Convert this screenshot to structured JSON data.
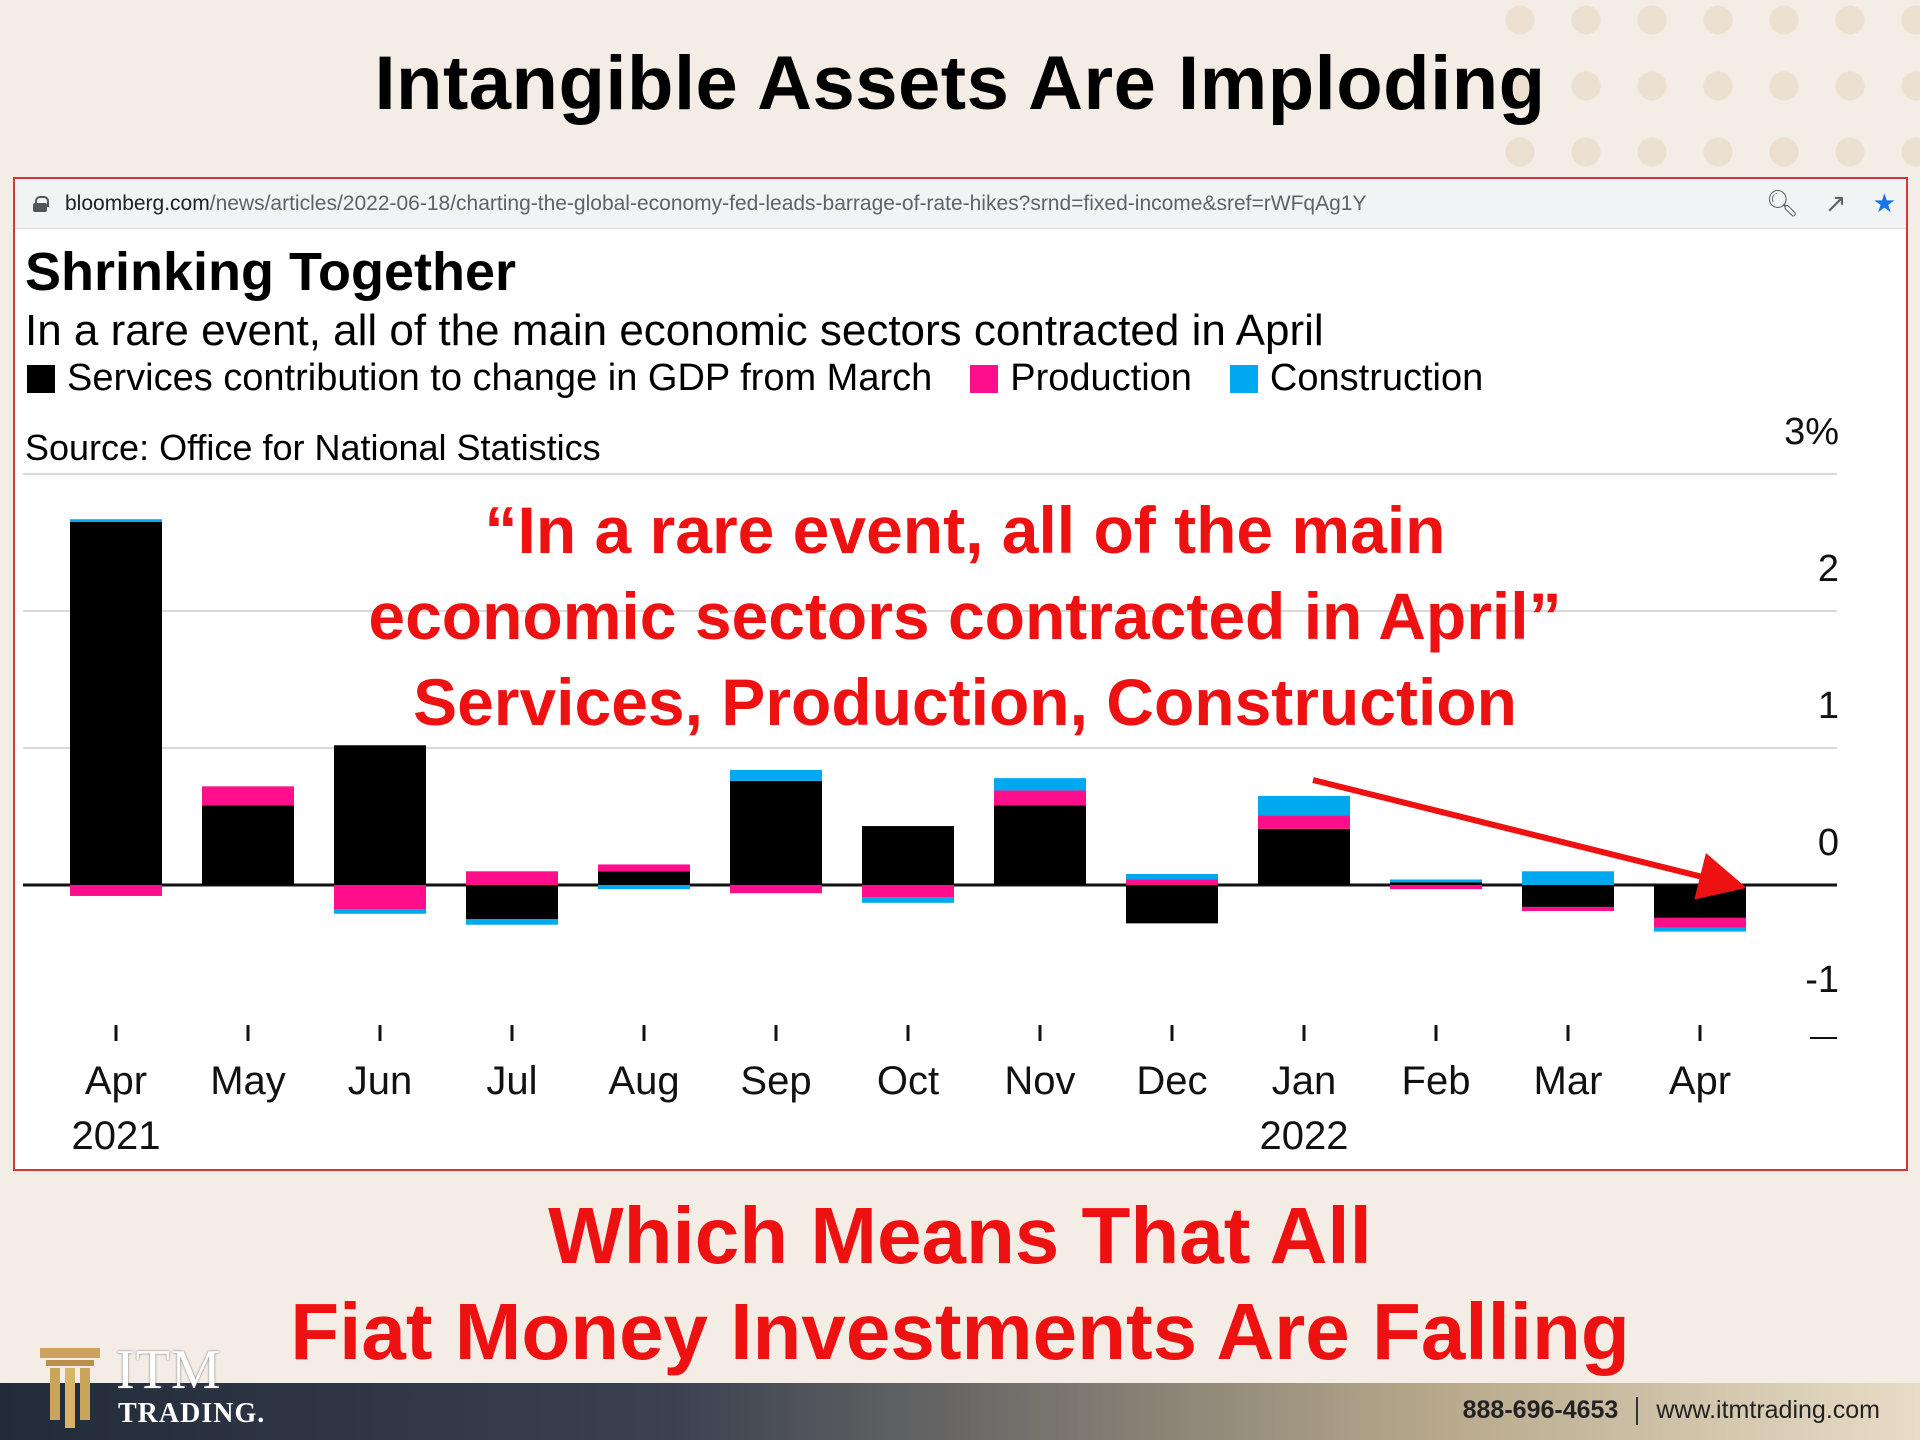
{
  "slide": {
    "title": "Intangible Assets Are Imploding",
    "bottom_line1": "Which Means That All",
    "bottom_line2": "Fiat Money Investments Are Falling",
    "annotation_line1": "“In a rare event, all of the main",
    "annotation_line2": "economic sectors contracted in April”",
    "annotation_line3": "Services, Production, Construction"
  },
  "browser": {
    "url_domain": "bloomberg.com",
    "url_path": "/news/articles/2022-06-18/charting-the-global-economy-fed-leads-barrage-of-rate-hikes?srnd=fixed-income&sref=rWFqAg1Y",
    "icons": [
      "lock-icon",
      "zoom-icon",
      "share-icon",
      "star-icon"
    ]
  },
  "footer": {
    "phone": "888-696-4653",
    "website": "www.itmtrading.com",
    "logo_name": "ITM",
    "logo_sub": "TRADING."
  },
  "colors": {
    "services": "#000000",
    "production": "#ff0f8c",
    "construction": "#00a8f0",
    "annotation": "#ee1111"
  },
  "chart_data": {
    "type": "bar",
    "stacked": true,
    "title": "Shrinking Together",
    "subtitle": "In a rare event, all of the main economic sectors contracted in April",
    "source": "Source: Office for National Statistics",
    "categories": [
      "Apr",
      "May",
      "Jun",
      "Jul",
      "Aug",
      "Sep",
      "Oct",
      "Nov",
      "Dec",
      "Jan",
      "Feb",
      "Mar",
      "Apr"
    ],
    "year_labels": [
      {
        "index": 0,
        "label": "2021"
      },
      {
        "index": 9,
        "label": "2022"
      }
    ],
    "series": [
      {
        "name": "Services contribution to change in GDP from March",
        "values": [
          2.65,
          0.58,
          1.02,
          -0.25,
          0.1,
          0.76,
          0.43,
          0.58,
          -0.28,
          0.41,
          0.02,
          -0.16,
          -0.24
        ]
      },
      {
        "name": "Production",
        "values": [
          -0.08,
          0.14,
          -0.18,
          0.1,
          0.05,
          -0.06,
          -0.09,
          0.11,
          0.04,
          0.1,
          -0.03,
          -0.03,
          -0.07
        ]
      },
      {
        "name": "Construction",
        "values": [
          0.02,
          0.0,
          -0.03,
          -0.04,
          -0.03,
          0.08,
          -0.04,
          0.09,
          0.04,
          0.14,
          0.02,
          0.1,
          -0.03
        ]
      }
    ],
    "ylim": [
      -1,
      3
    ],
    "yticks": [
      3,
      2,
      1,
      0,
      -1
    ],
    "ytick_labels": [
      "3%",
      "2",
      "1",
      "0",
      "-1"
    ],
    "grid": true,
    "legend_position": "top-left"
  }
}
